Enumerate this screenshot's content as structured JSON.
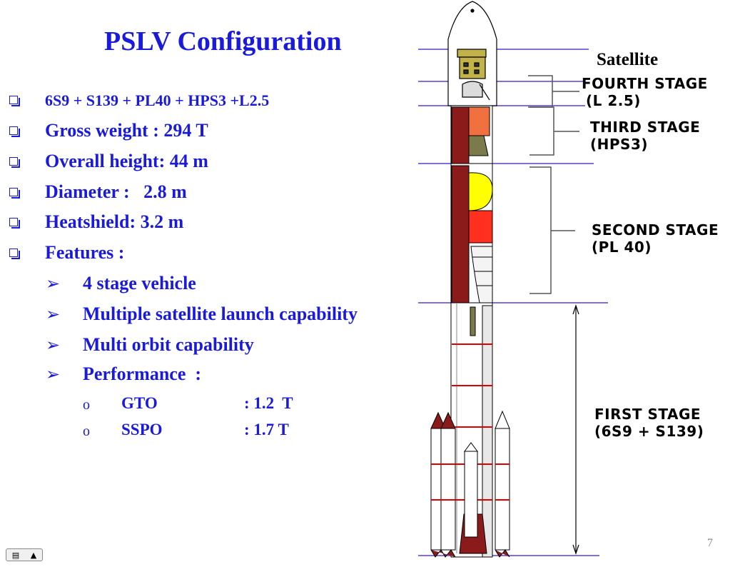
{
  "title": "PSLV Configuration",
  "bullets": [
    "6S9 + S139 + PL40 + HPS3 +L2.5",
    "Gross weight : 294 T",
    "Overall height: 44 m",
    "Diameter :   2.8 m",
    "Heatshield: 3.2 m",
    "Features :"
  ],
  "features": [
    "4 stage vehicle",
    "Multiple satellite launch capability",
    "Multi orbit capability",
    "Performance  :"
  ],
  "performance": [
    {
      "orbit": "GTO",
      "value": ": 1.2  T"
    },
    {
      "orbit": "SSPO",
      "value": ": 1.7 T"
    }
  ],
  "diagram": {
    "satellite": "Satellite",
    "fourth_stage": [
      "FOURTH STAGE",
      "(L 2.5)"
    ],
    "third_stage": [
      "THIRD STAGE",
      "(HPS3)"
    ],
    "second_stage": [
      "SECOND STAGE",
      "(PL 40)"
    ],
    "first_stage": [
      "FIRST STAGE",
      "(6S9 + S139)"
    ]
  },
  "page_number": "7",
  "colors": {
    "text_blue": "#1a1adc",
    "divider": "#5a3fd0",
    "dark_red": "#8b1a1a",
    "orange": "#f07040",
    "yellow": "#ffff00",
    "red": "#ff3020",
    "olive": "#7a7a4a"
  }
}
